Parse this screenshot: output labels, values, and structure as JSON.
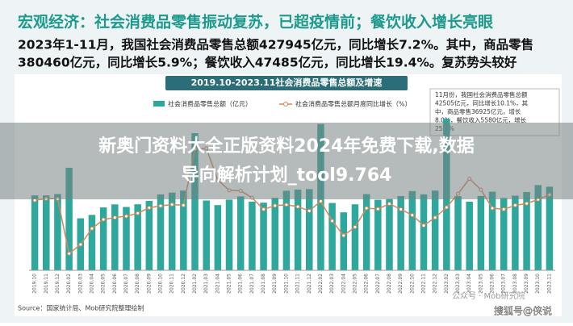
{
  "header": {
    "title": "宏观经济：社会消费品零售振动复苏，已超疫情前；餐饮收入增长亮眼",
    "lines": [
      "2023年1-11月，我国社会消费品零售总额427945亿元，同比增长7.2%。其中，商品零售",
      "380460亿元，同比增长5.9%；餐饮收入47485亿元，同比增长19.4%。复苏势头较好"
    ]
  },
  "chart_data": {
    "type": "bar",
    "title": "2019.10-2023.11社会消费品零售总额及增速",
    "categories": [
      "2019.10",
      "2019.11",
      "2019.12",
      "2020.02",
      "2020.03",
      "2020.04",
      "2020.05",
      "2020.06",
      "2020.07",
      "2020.08",
      "2020.09",
      "2020.10",
      "2020.11",
      "2020.12",
      "2021.02",
      "2021.03",
      "2021.04",
      "2021.05",
      "2021.06",
      "2021.07",
      "2021.08",
      "2021.09",
      "2021.10",
      "2021.11",
      "2021.12",
      "2022.02",
      "2022.03",
      "2022.04",
      "2022.05",
      "2022.06",
      "2022.07",
      "2022.08",
      "2022.09",
      "2022.10",
      "2022.11",
      "2022.12",
      "2023.02",
      "2023.03",
      "2023.04",
      "2023.05",
      "2023.06",
      "2023.07",
      "2023.08",
      "2023.09",
      "2023.10",
      "2023.11"
    ],
    "series": [
      {
        "name": "社会消费品零售总额（亿元）",
        "color": "#2ea79c",
        "values": [
          38104,
          38094,
          38777,
          52130,
          26450,
          28178,
          31973,
          33526,
          32203,
          33571,
          35295,
          38576,
          39514,
          40566,
          69737,
          35484,
          33153,
          35945,
          37586,
          34925,
          34395,
          36833,
          40454,
          41043,
          41269,
          74426,
          34233,
          29483,
          33547,
          38742,
          35870,
          36258,
          37745,
          40271,
          38615,
          40542,
          77067,
          37715,
          34910,
          37803,
          39951,
          36761,
          37933,
          39826,
          43333,
          42505
        ]
      },
      {
        "name": "社会消费品零售总额月度同比增长（%）",
        "color": "#d4895a",
        "axis": "y2",
        "values": [
          7.2,
          8.0,
          8.0,
          -20.5,
          -15.8,
          -7.5,
          -2.8,
          -1.8,
          -1.1,
          0.5,
          3.3,
          4.3,
          5.0,
          4.6,
          33.8,
          34.2,
          17.7,
          12.4,
          12.1,
          8.5,
          2.5,
          4.4,
          4.9,
          3.9,
          1.7,
          6.7,
          -3.5,
          -11.1,
          -6.7,
          3.1,
          2.7,
          5.4,
          2.5,
          -0.5,
          -5.9,
          -1.8,
          3.5,
          10.6,
          18.4,
          12.7,
          3.1,
          2.5,
          4.6,
          5.5,
          7.6,
          10.1
        ]
      }
    ],
    "ylim": [
      0,
      80000
    ],
    "y2lim": [
      -25,
      40
    ],
    "annotation": [
      "11月份，我国社会消费品零售总额",
      "42505亿元，同比增长10.1%，其",
      "中，商品零售36925亿元，增长",
      "8.0%，餐饮收入5580亿元，增长",
      "25.8%"
    ],
    "source": "Source：国家统计局、Mob研究院整理绘制"
  },
  "overlay": [
    "新奥门资料大全正版资料2024年免费下载,数据",
    "导向解析计划_tool9.764"
  ],
  "watermark": [
    "公众号 · Mob研究院",
    "搜狐号@侠说"
  ]
}
